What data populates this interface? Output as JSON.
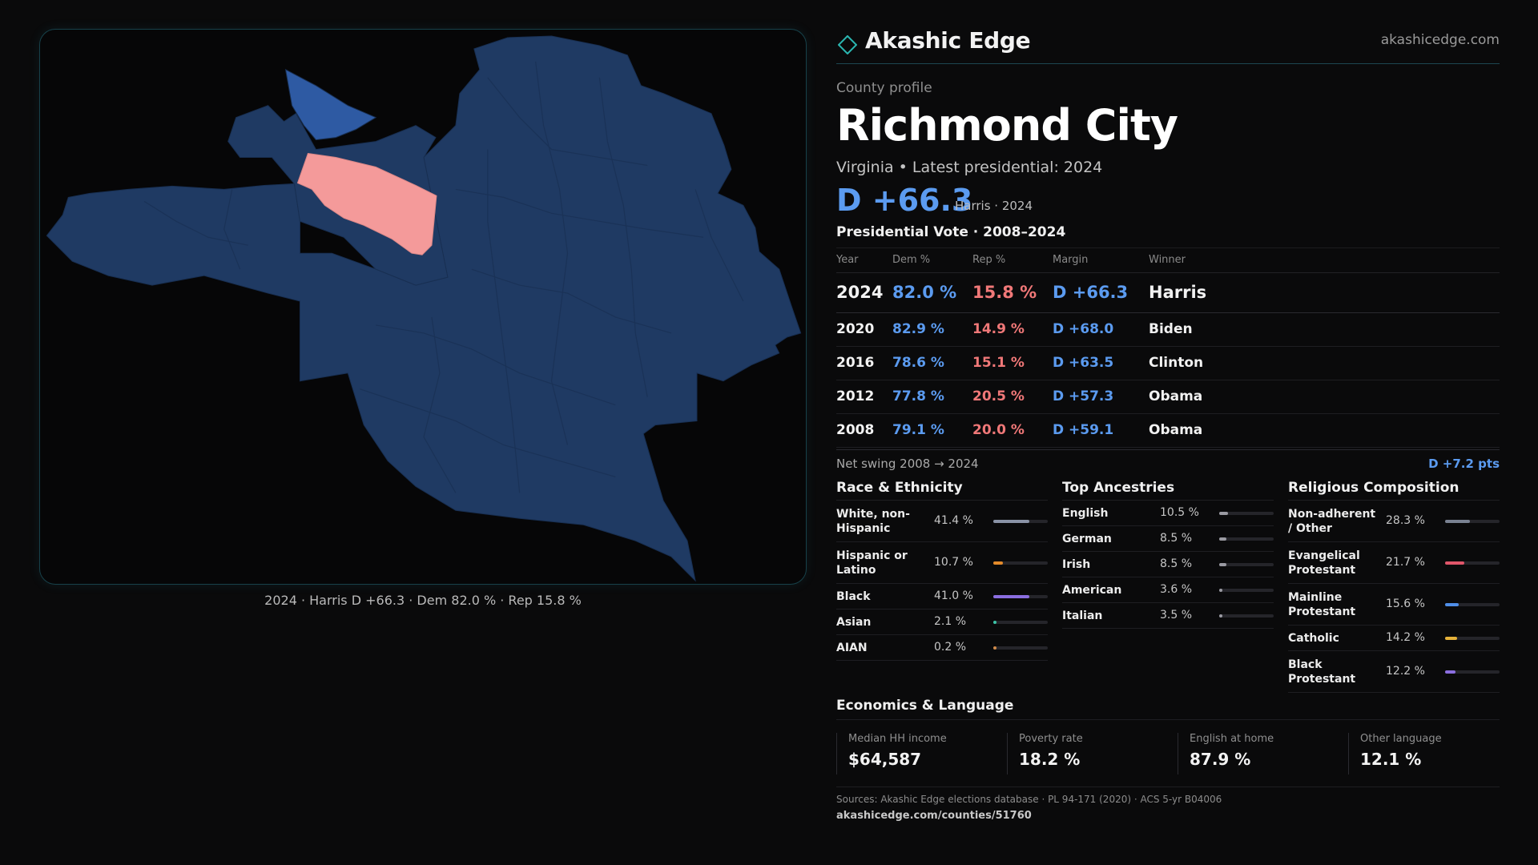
{
  "brand": {
    "name": "Akashic Edge",
    "site": "akashicedge.com"
  },
  "profile": {
    "kicker": "County profile",
    "county": "Richmond City",
    "subtitle": "Virginia • Latest presidential: 2024",
    "headline_margin": "D +66.3",
    "headline_note": "Harris · 2024"
  },
  "map": {
    "caption": "2024 · Harris D +66.3 · Dem 82.0 % · Rep 15.8 %",
    "colors": {
      "base": "#1f3a63",
      "strong_dem": "#2e5aa3",
      "rep": "#f49a9a"
    }
  },
  "votes": {
    "title": "Presidential Vote · 2008–2024",
    "headers": [
      "Year",
      "Dem %",
      "Rep %",
      "Margin",
      "Winner"
    ],
    "rows": [
      {
        "year": "2024",
        "dem": "82.0 %",
        "rep": "15.8 %",
        "margin": "D +66.3",
        "winner": "Harris"
      },
      {
        "year": "2020",
        "dem": "82.9 %",
        "rep": "14.9 %",
        "margin": "D +68.0",
        "winner": "Biden"
      },
      {
        "year": "2016",
        "dem": "78.6 %",
        "rep": "15.1 %",
        "margin": "D +63.5",
        "winner": "Clinton"
      },
      {
        "year": "2012",
        "dem": "77.8 %",
        "rep": "20.5 %",
        "margin": "D +57.3",
        "winner": "Obama"
      },
      {
        "year": "2008",
        "dem": "79.1 %",
        "rep": "20.0 %",
        "margin": "D +59.1",
        "winner": "Obama"
      }
    ],
    "swing_label": "Net swing 2008 → 2024",
    "swing_value": "D +7.2 pts"
  },
  "race": {
    "title": "Race & Ethnicity",
    "items": [
      {
        "label": "White, non-Hispanic",
        "value": "41.4 %",
        "pct": 41.4,
        "color": "#8a93a6"
      },
      {
        "label": "Hispanic or Latino",
        "value": "10.7 %",
        "pct": 10.7,
        "color": "#e38a2a"
      },
      {
        "label": "Black",
        "value": "41.0 %",
        "pct": 41.0,
        "color": "#8b6ee0"
      },
      {
        "label": "Asian",
        "value": "2.1 %",
        "pct": 2.1,
        "color": "#3cc4a8"
      },
      {
        "label": "AIAN",
        "value": "0.2 %",
        "pct": 0.2,
        "color": "#d08a4a"
      }
    ]
  },
  "ancestry": {
    "title": "Top Ancestries",
    "items": [
      {
        "label": "English",
        "value": "10.5 %",
        "pct": 10.5,
        "color": "#9a9aa2"
      },
      {
        "label": "German",
        "value": "8.5 %",
        "pct": 8.5,
        "color": "#9a9aa2"
      },
      {
        "label": "Irish",
        "value": "8.5 %",
        "pct": 8.5,
        "color": "#9a9aa2"
      },
      {
        "label": "American",
        "value": "3.6 %",
        "pct": 3.6,
        "color": "#9a9aa2"
      },
      {
        "label": "Italian",
        "value": "3.5 %",
        "pct": 3.5,
        "color": "#9a9aa2"
      }
    ]
  },
  "religion": {
    "title": "Religious Composition",
    "items": [
      {
        "label": "Non-adherent / Other",
        "value": "28.3 %",
        "pct": 28.3,
        "color": "#7a8292"
      },
      {
        "label": "Evangelical Protestant",
        "value": "21.7 %",
        "pct": 21.7,
        "color": "#e0566a"
      },
      {
        "label": "Mainline Protestant",
        "value": "15.6 %",
        "pct": 15.6,
        "color": "#4f8ee8"
      },
      {
        "label": "Catholic",
        "value": "14.2 %",
        "pct": 14.2,
        "color": "#e6b23a"
      },
      {
        "label": "Black Protestant",
        "value": "12.2 %",
        "pct": 12.2,
        "color": "#8b6ee0"
      }
    ]
  },
  "economics": {
    "title": "Economics & Language",
    "items": [
      {
        "label": "Median HH income",
        "value": "$64,587"
      },
      {
        "label": "Poverty rate",
        "value": "18.2 %"
      },
      {
        "label": "English at home",
        "value": "87.9 %"
      },
      {
        "label": "Other language",
        "value": "12.1 %"
      }
    ]
  },
  "footer": {
    "sources": "Sources: Akashic Edge elections database · PL 94-171 (2020) · ACS 5-yr B04006",
    "url": "akashicedge.com/counties/51760"
  }
}
